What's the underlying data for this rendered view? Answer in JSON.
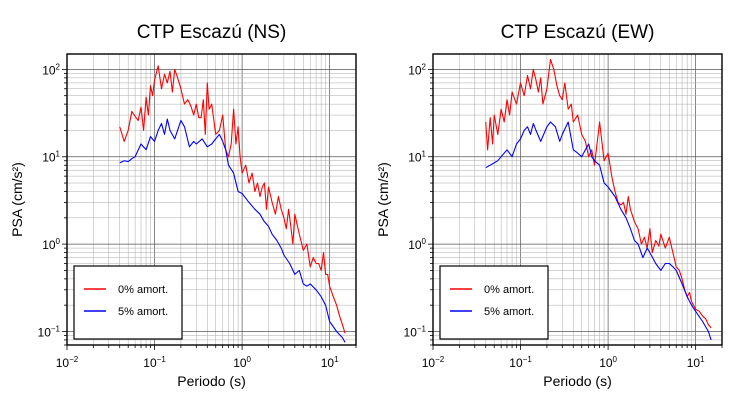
{
  "chart_data": [
    {
      "type": "line",
      "title": "CTP Escazú (NS)",
      "xlabel": "Periodo (s)",
      "ylabel": "PSA (cm/s²)",
      "xscale": "log",
      "yscale": "log",
      "xlim": [
        0.01,
        20
      ],
      "ylim": [
        0.07,
        150
      ],
      "grid": true,
      "legend_position": "bottom-left",
      "x_ticks": [
        {
          "value": 0.01,
          "base": "10",
          "exp": "−2"
        },
        {
          "value": 0.1,
          "base": "10",
          "exp": "−1"
        },
        {
          "value": 1,
          "base": "10",
          "exp": "0"
        },
        {
          "value": 10,
          "base": "10",
          "exp": "1"
        }
      ],
      "y_ticks": [
        {
          "value": 0.1,
          "base": "10",
          "exp": "−1"
        },
        {
          "value": 1,
          "base": "10",
          "exp": "0"
        },
        {
          "value": 10,
          "base": "10",
          "exp": "1"
        },
        {
          "value": 100,
          "base": "10",
          "exp": "2"
        }
      ],
      "series": [
        {
          "name": "0% amort.",
          "color": "#ff0000",
          "x": [
            0.04,
            0.045,
            0.05,
            0.055,
            0.06,
            0.065,
            0.07,
            0.075,
            0.08,
            0.085,
            0.09,
            0.095,
            0.1,
            0.11,
            0.12,
            0.13,
            0.14,
            0.15,
            0.16,
            0.17,
            0.18,
            0.2,
            0.22,
            0.24,
            0.26,
            0.28,
            0.3,
            0.32,
            0.34,
            0.36,
            0.38,
            0.4,
            0.42,
            0.45,
            0.5,
            0.55,
            0.6,
            0.65,
            0.7,
            0.75,
            0.8,
            0.85,
            0.9,
            0.95,
            1.0,
            1.1,
            1.2,
            1.3,
            1.4,
            1.5,
            1.6,
            1.7,
            1.8,
            1.9,
            2.0,
            2.2,
            2.4,
            2.6,
            2.8,
            3.0,
            3.2,
            3.4,
            3.6,
            3.8,
            4.0,
            4.5,
            5.0,
            5.5,
            6.0,
            6.5,
            7.0,
            7.5,
            8.0,
            8.5,
            9.0,
            9.5,
            10.0,
            11.0,
            12.0,
            13.0,
            14.0,
            15.0
          ],
          "y": [
            22,
            15,
            20,
            33,
            29,
            26,
            37,
            20,
            48,
            30,
            65,
            50,
            75,
            110,
            60,
            88,
            70,
            95,
            55,
            100,
            85,
            60,
            40,
            45,
            38,
            30,
            40,
            28,
            28,
            45,
            18,
            70,
            35,
            40,
            18,
            20,
            30,
            12,
            10,
            14,
            35,
            14,
            22,
            10,
            6.5,
            8,
            5,
            6.5,
            4,
            5,
            3.5,
            4.5,
            5,
            2.5,
            4.5,
            3,
            2.2,
            3.5,
            2.5,
            2,
            1.5,
            2.5,
            1.6,
            1.0,
            2.2,
            1.3,
            0.85,
            1.0,
            0.55,
            0.7,
            0.6,
            0.6,
            0.5,
            0.8,
            0.45,
            0.45,
            0.33,
            0.25,
            0.2,
            0.15,
            0.12,
            0.095
          ]
        },
        {
          "name": "5% amort.",
          "color": "#0000ff",
          "x": [
            0.04,
            0.045,
            0.05,
            0.055,
            0.06,
            0.07,
            0.08,
            0.09,
            0.1,
            0.11,
            0.12,
            0.13,
            0.14,
            0.15,
            0.17,
            0.2,
            0.22,
            0.25,
            0.28,
            0.3,
            0.35,
            0.4,
            0.45,
            0.5,
            0.55,
            0.6,
            0.65,
            0.7,
            0.8,
            0.9,
            1.0,
            1.2,
            1.4,
            1.6,
            1.8,
            2.0,
            2.2,
            2.5,
            2.8,
            3.0,
            3.5,
            4.0,
            4.5,
            5.0,
            5.5,
            6.0,
            7.0,
            8.0,
            9.0,
            10.0,
            12.0,
            14.0,
            15.0
          ],
          "y": [
            8.5,
            9,
            8.8,
            9.5,
            10,
            14,
            12,
            17,
            15,
            20,
            24,
            18,
            27,
            20,
            16,
            26,
            22,
            13,
            15,
            14,
            16,
            13,
            14,
            16,
            18,
            15,
            12,
            8,
            6.5,
            4,
            3.8,
            3,
            2.5,
            2.2,
            1.8,
            1.6,
            1.3,
            1.1,
            0.9,
            0.75,
            0.6,
            0.45,
            0.5,
            0.35,
            0.33,
            0.35,
            0.3,
            0.25,
            0.2,
            0.13,
            0.1,
            0.085,
            0.075
          ]
        }
      ]
    },
    {
      "type": "line",
      "title": "CTP Escazú (EW)",
      "xlabel": "Periodo (s)",
      "ylabel": "PSA (cm/s²)",
      "xscale": "log",
      "yscale": "log",
      "xlim": [
        0.01,
        20
      ],
      "ylim": [
        0.07,
        150
      ],
      "grid": true,
      "legend_position": "bottom-left",
      "x_ticks": [
        {
          "value": 0.01,
          "base": "10",
          "exp": "−2"
        },
        {
          "value": 0.1,
          "base": "10",
          "exp": "−1"
        },
        {
          "value": 1,
          "base": "10",
          "exp": "0"
        },
        {
          "value": 10,
          "base": "10",
          "exp": "1"
        }
      ],
      "y_ticks": [
        {
          "value": 0.1,
          "base": "10",
          "exp": "−1"
        },
        {
          "value": 1,
          "base": "10",
          "exp": "0"
        },
        {
          "value": 10,
          "base": "10",
          "exp": "1"
        },
        {
          "value": 100,
          "base": "10",
          "exp": "2"
        }
      ],
      "series": [
        {
          "name": "0% amort.",
          "color": "#ff0000",
          "x": [
            0.04,
            0.042,
            0.045,
            0.048,
            0.05,
            0.055,
            0.06,
            0.065,
            0.07,
            0.075,
            0.08,
            0.09,
            0.1,
            0.11,
            0.12,
            0.13,
            0.14,
            0.15,
            0.16,
            0.17,
            0.18,
            0.2,
            0.22,
            0.24,
            0.26,
            0.28,
            0.3,
            0.32,
            0.35,
            0.38,
            0.4,
            0.45,
            0.5,
            0.55,
            0.6,
            0.65,
            0.7,
            0.8,
            0.9,
            1.0,
            1.1,
            1.2,
            1.3,
            1.4,
            1.5,
            1.6,
            1.7,
            1.8,
            2.0,
            2.2,
            2.4,
            2.6,
            2.8,
            3.0,
            3.2,
            3.5,
            3.8,
            4.0,
            4.5,
            5.0,
            5.5,
            6.0,
            6.5,
            7.0,
            7.5,
            8.0,
            8.5,
            9.0,
            10.0,
            11.0,
            12.0,
            13.0,
            14.0,
            15.0
          ],
          "y": [
            25,
            12,
            28,
            14,
            30,
            18,
            35,
            25,
            45,
            30,
            55,
            40,
            70,
            50,
            85,
            60,
            100,
            75,
            55,
            80,
            40,
            60,
            130,
            100,
            65,
            50,
            45,
            70,
            35,
            40,
            25,
            30,
            18,
            15,
            10,
            12,
            8,
            25,
            9,
            11,
            6,
            4,
            3,
            2.8,
            3,
            2.2,
            3.5,
            2.5,
            1.8,
            1.5,
            1.0,
            1.2,
            0.9,
            1.5,
            0.8,
            1.1,
            0.95,
            1.3,
            0.9,
            1.2,
            0.8,
            0.55,
            0.5,
            0.4,
            0.3,
            0.25,
            0.28,
            0.22,
            0.18,
            0.17,
            0.15,
            0.14,
            0.12,
            0.11
          ]
        },
        {
          "name": "5% amort.",
          "color": "#0000ff",
          "x": [
            0.04,
            0.045,
            0.05,
            0.055,
            0.06,
            0.07,
            0.08,
            0.09,
            0.1,
            0.11,
            0.12,
            0.13,
            0.14,
            0.15,
            0.17,
            0.2,
            0.22,
            0.25,
            0.28,
            0.3,
            0.35,
            0.4,
            0.45,
            0.5,
            0.55,
            0.6,
            0.65,
            0.7,
            0.8,
            0.9,
            1.0,
            1.2,
            1.4,
            1.6,
            1.8,
            2.0,
            2.2,
            2.5,
            2.8,
            3.0,
            3.5,
            4.0,
            4.5,
            5.0,
            5.5,
            6.0,
            7.0,
            8.0,
            9.0,
            10.0,
            12.0,
            14.0,
            15.0
          ],
          "y": [
            7.5,
            8,
            8.5,
            9,
            10,
            12,
            10,
            14,
            16,
            20,
            22,
            18,
            24,
            20,
            15,
            22,
            25,
            22,
            15,
            18,
            25,
            12,
            11,
            10,
            12,
            14,
            10,
            9,
            8,
            5,
            4.5,
            3.5,
            2.5,
            2.0,
            1.5,
            1.1,
            1.0,
            0.7,
            0.9,
            0.8,
            0.6,
            0.5,
            0.6,
            0.6,
            0.55,
            0.5,
            0.35,
            0.25,
            0.2,
            0.17,
            0.13,
            0.1,
            0.08
          ]
        }
      ]
    }
  ]
}
